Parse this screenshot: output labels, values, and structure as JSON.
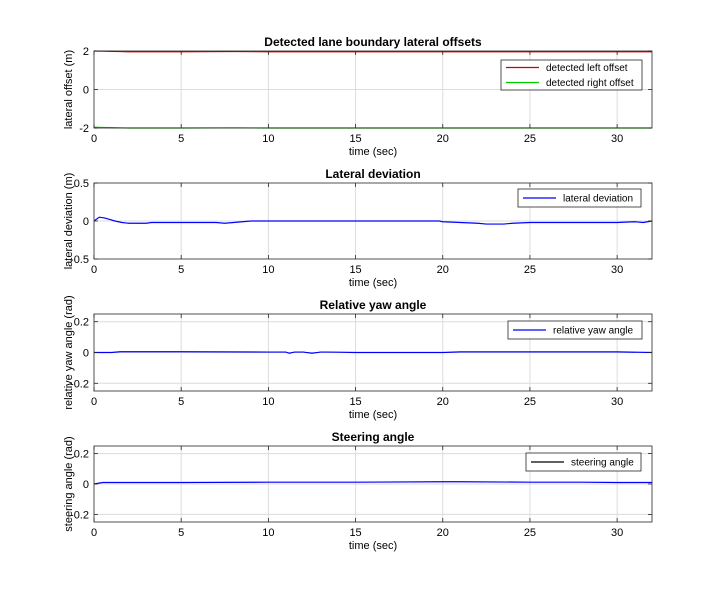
{
  "figure": {
    "background": "#ffffff"
  },
  "chart_data": [
    {
      "type": "line",
      "title": "Detected lane boundary lateral offsets",
      "xlabel": "time (sec)",
      "ylabel": "lateral offset (m)",
      "xlim": [
        0,
        32
      ],
      "ylim": [
        -2,
        2
      ],
      "xticks": [
        0,
        5,
        10,
        15,
        20,
        25,
        30
      ],
      "yticks": [
        -2,
        0,
        2
      ],
      "grid": true,
      "legend": "top-right",
      "series": [
        {
          "name": "detected left offset",
          "color": "#cc0000",
          "x": [
            0,
            0.5,
            1,
            1.5,
            2,
            5,
            8,
            10,
            15,
            20,
            25,
            30,
            32
          ],
          "y": [
            2.0,
            1.99,
            1.98,
            1.97,
            1.96,
            1.96,
            1.97,
            1.96,
            1.96,
            1.96,
            1.96,
            1.96,
            1.96
          ]
        },
        {
          "name": "detected right offset",
          "color": "#00cc00",
          "x": [
            0,
            0.5,
            1,
            1.5,
            2,
            5,
            8,
            10,
            15,
            20,
            25,
            30,
            32
          ],
          "y": [
            -1.96,
            -1.97,
            -1.98,
            -1.99,
            -2.0,
            -2.0,
            -1.99,
            -2.0,
            -2.0,
            -2.0,
            -2.0,
            -2.0,
            -2.0
          ]
        }
      ]
    },
    {
      "type": "line",
      "title": "Lateral deviation",
      "xlabel": "time (sec)",
      "ylabel": "lateral deviation (m)",
      "xlim": [
        0,
        32
      ],
      "ylim": [
        -0.5,
        0.5
      ],
      "xticks": [
        0,
        5,
        10,
        15,
        20,
        25,
        30
      ],
      "yticks": [
        -0.5,
        0,
        0.5
      ],
      "grid": true,
      "legend": "top-right",
      "series": [
        {
          "name": "lateral deviation",
          "color": "#0000ff",
          "x": [
            0,
            0.3,
            0.6,
            0.9,
            1.2,
            1.6,
            2,
            3,
            3.3,
            4,
            7,
            7.5,
            8,
            8.5,
            9,
            10,
            15,
            19.8,
            20,
            21,
            22,
            22.5,
            23.5,
            24,
            25,
            28,
            30,
            31,
            31.5,
            32
          ],
          "y": [
            0.0,
            0.05,
            0.04,
            0.02,
            0.0,
            -0.02,
            -0.03,
            -0.03,
            -0.02,
            -0.02,
            -0.02,
            -0.03,
            -0.02,
            -0.01,
            0.0,
            0.0,
            0.0,
            0.0,
            -0.01,
            -0.02,
            -0.03,
            -0.04,
            -0.04,
            -0.03,
            -0.02,
            -0.02,
            -0.02,
            -0.01,
            -0.02,
            0.0
          ]
        }
      ]
    },
    {
      "type": "line",
      "title": "Relative yaw angle",
      "xlabel": "time (sec)",
      "ylabel": "relative yaw angle (rad)",
      "xlim": [
        0,
        32
      ],
      "ylim": [
        -0.25,
        0.25
      ],
      "xticks": [
        0,
        5,
        10,
        15,
        20,
        25,
        30
      ],
      "yticks": [
        -0.2,
        0,
        0.2
      ],
      "grid": true,
      "legend": "top-right",
      "series": [
        {
          "name": "relative yaw angle",
          "color": "#0000ff",
          "x": [
            0,
            1,
            1.5,
            2,
            5,
            10,
            11,
            11.2,
            11.5,
            12,
            12.5,
            13,
            13.3,
            14,
            15,
            20,
            21,
            25,
            30,
            32
          ],
          "y": [
            0.0,
            0.0,
            0.005,
            0.005,
            0.005,
            0.003,
            0.003,
            -0.005,
            0.003,
            0.003,
            -0.005,
            0.003,
            0.003,
            0.002,
            0.0,
            0.0,
            0.004,
            0.004,
            0.004,
            0.0
          ]
        }
      ]
    },
    {
      "type": "line",
      "title": "Steering angle",
      "xlabel": "time (sec)",
      "ylabel": "steering angle (rad)",
      "xlim": [
        0,
        32
      ],
      "ylim": [
        -0.25,
        0.25
      ],
      "xticks": [
        0,
        5,
        10,
        15,
        20,
        25,
        30
      ],
      "yticks": [
        -0.2,
        0,
        0.2
      ],
      "grid": true,
      "legend": "top-right",
      "series": [
        {
          "name": "steering angle",
          "color": "#0000ff",
          "legend_color": "#000000",
          "x": [
            0,
            0.5,
            1,
            3,
            5,
            10,
            15,
            20,
            21,
            25,
            28,
            30,
            32
          ],
          "y": [
            0.0,
            0.01,
            0.01,
            0.01,
            0.01,
            0.012,
            0.012,
            0.015,
            0.015,
            0.012,
            0.012,
            0.01,
            0.01
          ]
        }
      ]
    }
  ]
}
